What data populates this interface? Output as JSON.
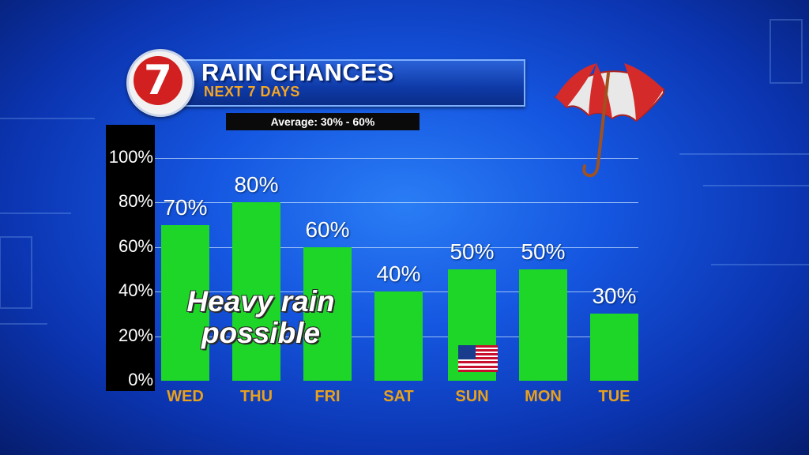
{
  "header": {
    "logo_text": "7",
    "title": "RAIN CHANCES",
    "subtitle": "NEXT 7 DAYS",
    "average": "Average: 30% - 60%"
  },
  "annotation": {
    "line1": "Heavy rain",
    "line2": "possible"
  },
  "colors": {
    "bar": "#1ed628",
    "day_label": "#e8a11c",
    "subtitle": "#f6a623",
    "logo_red": "#d21f1f"
  },
  "chart_data": {
    "type": "bar",
    "categories": [
      "WED",
      "THU",
      "FRI",
      "SAT",
      "SUN",
      "MON",
      "TUE"
    ],
    "values": [
      70,
      80,
      60,
      40,
      50,
      50,
      30
    ],
    "value_labels": [
      "70%",
      "80%",
      "60%",
      "40%",
      "50%",
      "50%",
      "30%"
    ],
    "yticks": [
      "0%",
      "20%",
      "40%",
      "60%",
      "80%",
      "100%"
    ],
    "ylim": [
      0,
      100
    ],
    "grid": true,
    "legend": "none"
  }
}
